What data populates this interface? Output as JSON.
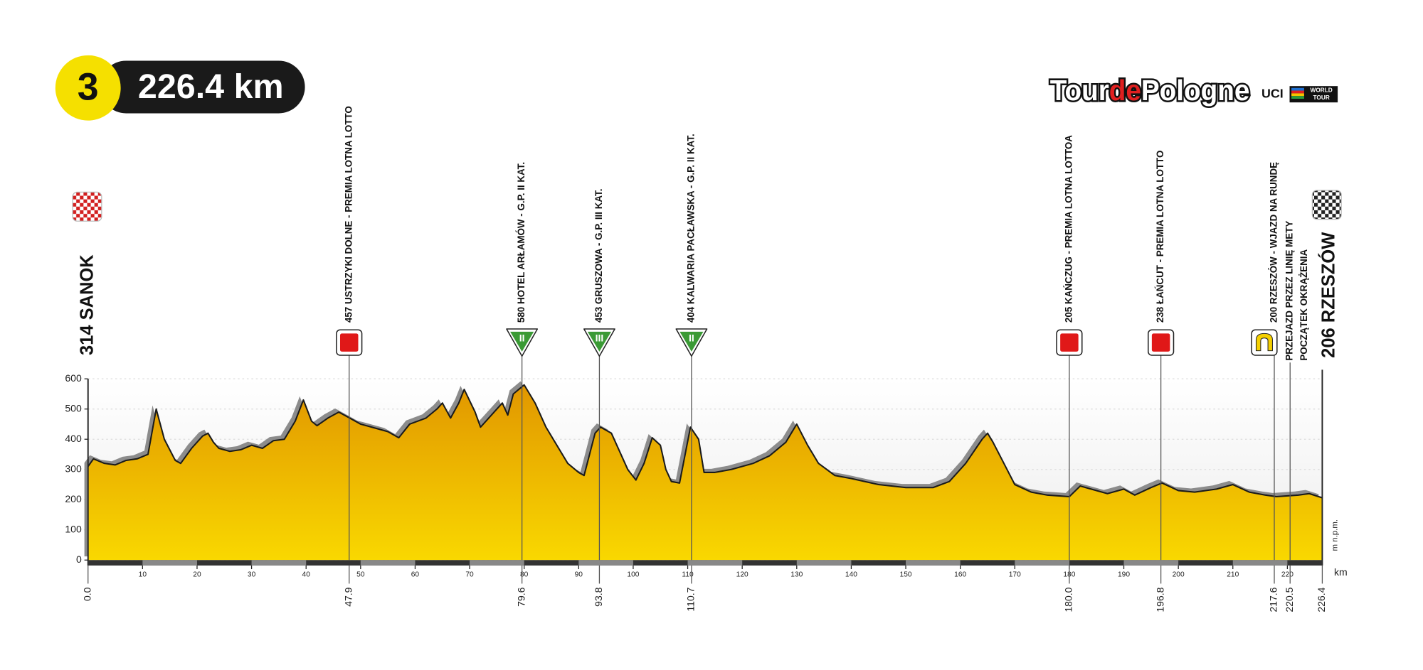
{
  "chart_data": {
    "type": "elevation-profile",
    "stage": "3",
    "distance": "226.4 km",
    "logo": {
      "tour": "Tour",
      "de": "de",
      "pologne": "Pologne",
      "uci": "UCI",
      "world": "WORLD",
      "worldtour": "TOUR"
    },
    "xlabel": "km",
    "ylabel": "m n.p.m.",
    "color": "#f0b400",
    "grid": true,
    "xlim": [
      0,
      226.4
    ],
    "ylim": [
      0,
      600
    ],
    "xticks": [
      10,
      20,
      30,
      40,
      50,
      60,
      70,
      80,
      90,
      100,
      110,
      120,
      130,
      140,
      150,
      160,
      170,
      180,
      190,
      200,
      210,
      220
    ],
    "yticks": [
      0,
      100,
      200,
      300,
      400,
      500,
      600
    ],
    "x": [
      0,
      1,
      3,
      5,
      7,
      9,
      11,
      12.5,
      14,
      16,
      17,
      19,
      21,
      22,
      23,
      24,
      26,
      28,
      30,
      32,
      34,
      36,
      38,
      39.5,
      41,
      42,
      44,
      46,
      48,
      50,
      52,
      55,
      57,
      59,
      62,
      64,
      65,
      66.5,
      68,
      69,
      71,
      72,
      74,
      76,
      77,
      78,
      80,
      82,
      84,
      86,
      88,
      90,
      91,
      93,
      94,
      96,
      97,
      99,
      100.5,
      102,
      103.5,
      105,
      106,
      107,
      108.5,
      110.5,
      112,
      113,
      115,
      118,
      122,
      125,
      128,
      130,
      132,
      134,
      137,
      140,
      145,
      150,
      155,
      158,
      161,
      164,
      165,
      166,
      168,
      170,
      173,
      176,
      180,
      182,
      184,
      187,
      190,
      192,
      195,
      197,
      200,
      203,
      207,
      210,
      213,
      216,
      218,
      222,
      224,
      226.4
    ],
    "values": [
      310,
      335,
      320,
      315,
      330,
      335,
      350,
      500,
      400,
      330,
      320,
      370,
      410,
      420,
      390,
      370,
      360,
      365,
      380,
      370,
      395,
      400,
      460,
      530,
      460,
      445,
      470,
      490,
      470,
      450,
      440,
      425,
      405,
      450,
      470,
      500,
      520,
      470,
      520,
      565,
      490,
      440,
      480,
      520,
      480,
      550,
      580,
      520,
      440,
      380,
      320,
      290,
      280,
      420,
      440,
      420,
      380,
      300,
      265,
      320,
      405,
      380,
      300,
      260,
      255,
      440,
      400,
      290,
      290,
      300,
      320,
      345,
      390,
      450,
      380,
      320,
      280,
      270,
      250,
      240,
      240,
      260,
      320,
      400,
      420,
      390,
      320,
      250,
      225,
      215,
      210,
      245,
      235,
      220,
      235,
      215,
      240,
      255,
      230,
      225,
      235,
      250,
      225,
      215,
      210,
      215,
      220,
      206
    ],
    "start": {
      "km": {
        "value": 0,
        "label": "0.0"
      },
      "text": "314 SANOK"
    },
    "finish": {
      "km": {
        "value": 226.4,
        "label": "226.4"
      },
      "text": "206 RZESZÓW"
    },
    "waypoints": [
      {
        "km": {
          "value": 47.9,
          "label": "47.9"
        },
        "text": "457 USTRZYKI DOLNE - PREMIA LOTNA LOTTO",
        "kind": "sprint"
      },
      {
        "km": {
          "value": 79.6,
          "label": "79.6"
        },
        "text": "580 HOTEL ARŁAMÓW - G.P. II KAT.",
        "kind": "climb",
        "category": "II"
      },
      {
        "km": {
          "value": 93.8,
          "label": "93.8"
        },
        "text": "453 GRUSZOWA - G.P. III KAT.",
        "kind": "climb",
        "category": "III"
      },
      {
        "km": {
          "value": 110.7,
          "label": "110.7"
        },
        "text": "404 KALWARIA PACŁAWSKA - G.P. II KAT.",
        "kind": "climb",
        "category": "II"
      },
      {
        "km": {
          "value": 180.0,
          "label": "180.0"
        },
        "text": "205 KAŃCZUG - PREMIA LOTNA LOTTOA",
        "kind": "sprint"
      },
      {
        "km": {
          "value": 196.8,
          "label": "196.8"
        },
        "text": "238 ŁAŃCUT - PREMIA LOTNA LOTTO",
        "kind": "sprint"
      },
      {
        "km": {
          "value": 217.6,
          "label": "217.6"
        },
        "text": "200 RZESZÓW - WJAZD NA RUNDĘ",
        "kind": "lap"
      },
      {
        "km": {
          "value": 220.5,
          "label": "220.5"
        },
        "text": [
          "PRZEJAZD PRZEZ LINIĘ METY",
          "POCZĄTEK OKRĄŻENIA"
        ]
      }
    ]
  }
}
